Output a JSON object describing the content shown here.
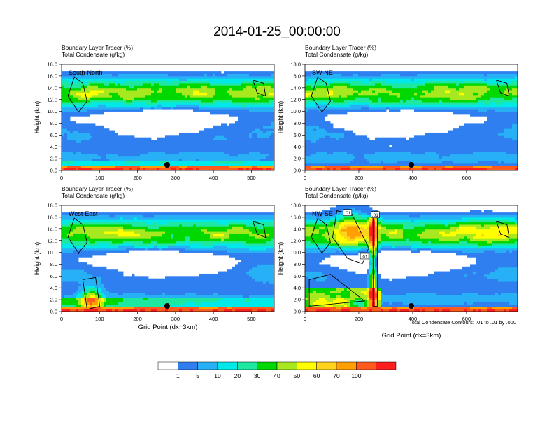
{
  "main_title": "2014-01-25_00:00:00",
  "colors": {
    "levels": [
      "#ffffff",
      "#2f7ff0",
      "#27b0f5",
      "#00e8e8",
      "#1ee8a0",
      "#00d800",
      "#a8e81e",
      "#ffff00",
      "#ffd21e",
      "#ffa000",
      "#ff5a1e",
      "#ff1e1e"
    ],
    "contour": "#000000",
    "background": "#ffffff"
  },
  "colorbar": {
    "labels": [
      "1",
      "5",
      "10",
      "20",
      "30",
      "40",
      "50",
      "60",
      "70",
      "100"
    ]
  },
  "footnote": "Total Condensate Contours: .01 to .01 by .000",
  "chart_data": [
    {
      "type": "heatmap",
      "panel_label": "South-North",
      "title_line1": "Boundary Layer Tracer   (%)",
      "title_line2": "Total Condensate   (g/kg)",
      "ylabel": "Height (km)",
      "xlabel": "",
      "ylim": [
        0,
        18
      ],
      "xlim": [
        0,
        560
      ],
      "yticks": [
        "0.0",
        "2.0",
        "4.0",
        "6.0",
        "8.0",
        "10.0",
        "12.0",
        "14.0",
        "16.0",
        "18.0"
      ],
      "xticks": [
        {
          "v": 0,
          "l": "0"
        },
        {
          "v": 100,
          "l": "100"
        },
        {
          "v": 200,
          "l": "200"
        },
        {
          "v": 300,
          "l": "300"
        },
        {
          "v": 400,
          "l": "400"
        },
        {
          "v": 500,
          "l": "500"
        }
      ],
      "marker_x": 278
    },
    {
      "type": "heatmap",
      "panel_label": "SW-NE",
      "title_line1": "Boundary Layer Tracer   (%)",
      "title_line2": "Total Condensate   (g/kg)",
      "ylabel": "Height (km)",
      "xlabel": "",
      "ylim": [
        0,
        18
      ],
      "xlim": [
        0,
        790
      ],
      "yticks": [
        "0.0",
        "2.0",
        "4.0",
        "6.0",
        "8.0",
        "10.0",
        "12.0",
        "14.0",
        "16.0",
        "18.0"
      ],
      "xticks": [
        {
          "v": 0,
          "l": "0"
        },
        {
          "v": 200,
          "l": "200"
        },
        {
          "v": 400,
          "l": "400"
        },
        {
          "v": 600,
          "l": "600"
        }
      ],
      "marker_x": 395
    },
    {
      "type": "heatmap",
      "panel_label": "West-East",
      "title_line1": "Boundary Layer Tracer   (%)",
      "title_line2": "Total Condensate   (g/kg)",
      "ylabel": "Height (km)",
      "xlabel": "Grid Point (dx=3km)",
      "ylim": [
        0,
        18
      ],
      "xlim": [
        0,
        560
      ],
      "yticks": [
        "0.0",
        "2.0",
        "4.0",
        "6.0",
        "8.0",
        "10.0",
        "12.0",
        "14.0",
        "16.0",
        "18.0"
      ],
      "xticks": [
        {
          "v": 0,
          "l": "0"
        },
        {
          "v": 100,
          "l": "100"
        },
        {
          "v": 200,
          "l": "200"
        },
        {
          "v": 300,
          "l": "300"
        },
        {
          "v": 400,
          "l": "400"
        },
        {
          "v": 500,
          "l": "500"
        }
      ],
      "marker_x": 278
    },
    {
      "type": "heatmap",
      "panel_label": "NW-SE",
      "title_line1": "Boundary Layer Tracer   (%)",
      "title_line2": "Total Condensate   (g/kg)",
      "ylabel": "Height (km)",
      "xlabel": "Grid Point (dx=3km)",
      "ylim": [
        0,
        18
      ],
      "xlim": [
        0,
        790
      ],
      "yticks": [
        "0.0",
        "2.0",
        "4.0",
        "6.0",
        "8.0",
        "10.0",
        "12.0",
        "14.0",
        "16.0",
        "18.0"
      ],
      "xticks": [
        {
          "v": 0,
          "l": "0"
        },
        {
          "v": 200,
          "l": "200"
        },
        {
          "v": 400,
          "l": "400"
        },
        {
          "v": 600,
          "l": "600"
        }
      ],
      "marker_x": 395,
      "contour_labels": [
        ".01",
        ".01",
        ".01"
      ]
    }
  ]
}
